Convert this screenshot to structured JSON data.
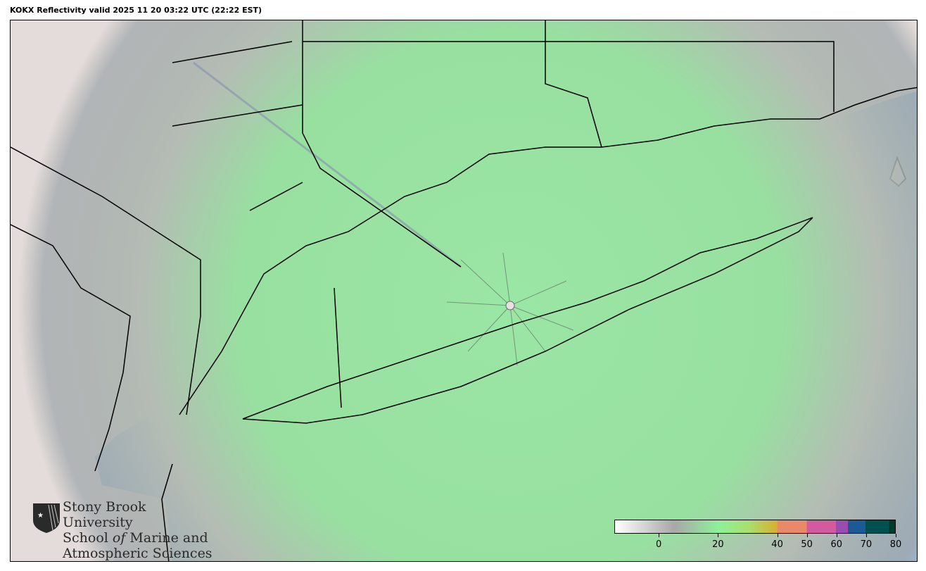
{
  "title": "KOKX Reflectivity valid 2025 11 20 03:22 UTC (22:22 EST)",
  "logo": {
    "line1": "Stony Brook University",
    "line2_pre": "School ",
    "line2_italic": "of",
    "line2_post": " Marine and",
    "line3": "Atmospheric Sciences"
  },
  "colorbar": {
    "range": [
      -15,
      80
    ],
    "ticks": [
      "0",
      "20",
      "40",
      "50",
      "60",
      "70",
      "80"
    ],
    "tick_values": [
      0,
      20,
      40,
      50,
      60,
      70,
      80
    ],
    "colors": {
      "low": "#ffffff",
      "gray": "#a8a8a8",
      "green": "#8ef09a",
      "yellow": "#d8b030",
      "orange": "#e88a6a",
      "pink": "#d45aa0",
      "purple": "#9a4cb0",
      "blue": "#1c5a96",
      "teal": "#005050",
      "dark": "#003a2a"
    }
  },
  "map": {
    "ocean_color": "#9dbad6",
    "land_color": "#e4dcda",
    "echo_color": "#98e2a0",
    "clutter_color": "#9a9a9a"
  }
}
